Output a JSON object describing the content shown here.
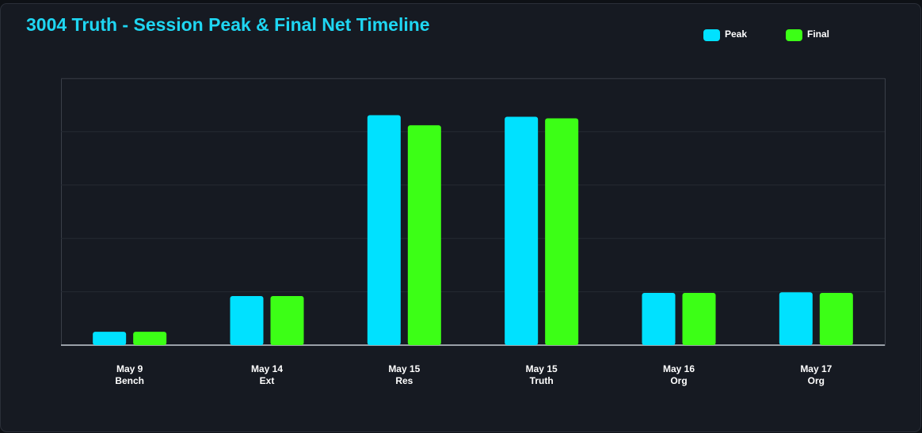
{
  "chart_data": {
    "type": "bar",
    "title": "3004 Truth - Session Peak & Final Net Timeline",
    "categories": [
      [
        "May 9",
        "Bench"
      ],
      [
        "May 14",
        "Ext"
      ],
      [
        "May 15",
        "Res"
      ],
      [
        "May 15",
        "Truth"
      ],
      [
        "May 16",
        "Org"
      ],
      [
        "May 17",
        "Org"
      ]
    ],
    "series": [
      {
        "name": "Peak",
        "color": "#00e1ff",
        "values": [
          0.25,
          0.92,
          4.31,
          4.28,
          0.98,
          0.99
        ]
      },
      {
        "name": "Final",
        "color": "#3cff16",
        "values": [
          0.25,
          0.92,
          4.12,
          4.25,
          0.98,
          0.98
        ]
      }
    ],
    "ylim": [
      0,
      5
    ],
    "yticks": [
      0,
      1,
      2,
      3,
      4,
      5
    ],
    "grid": true,
    "legend": "top-right"
  }
}
